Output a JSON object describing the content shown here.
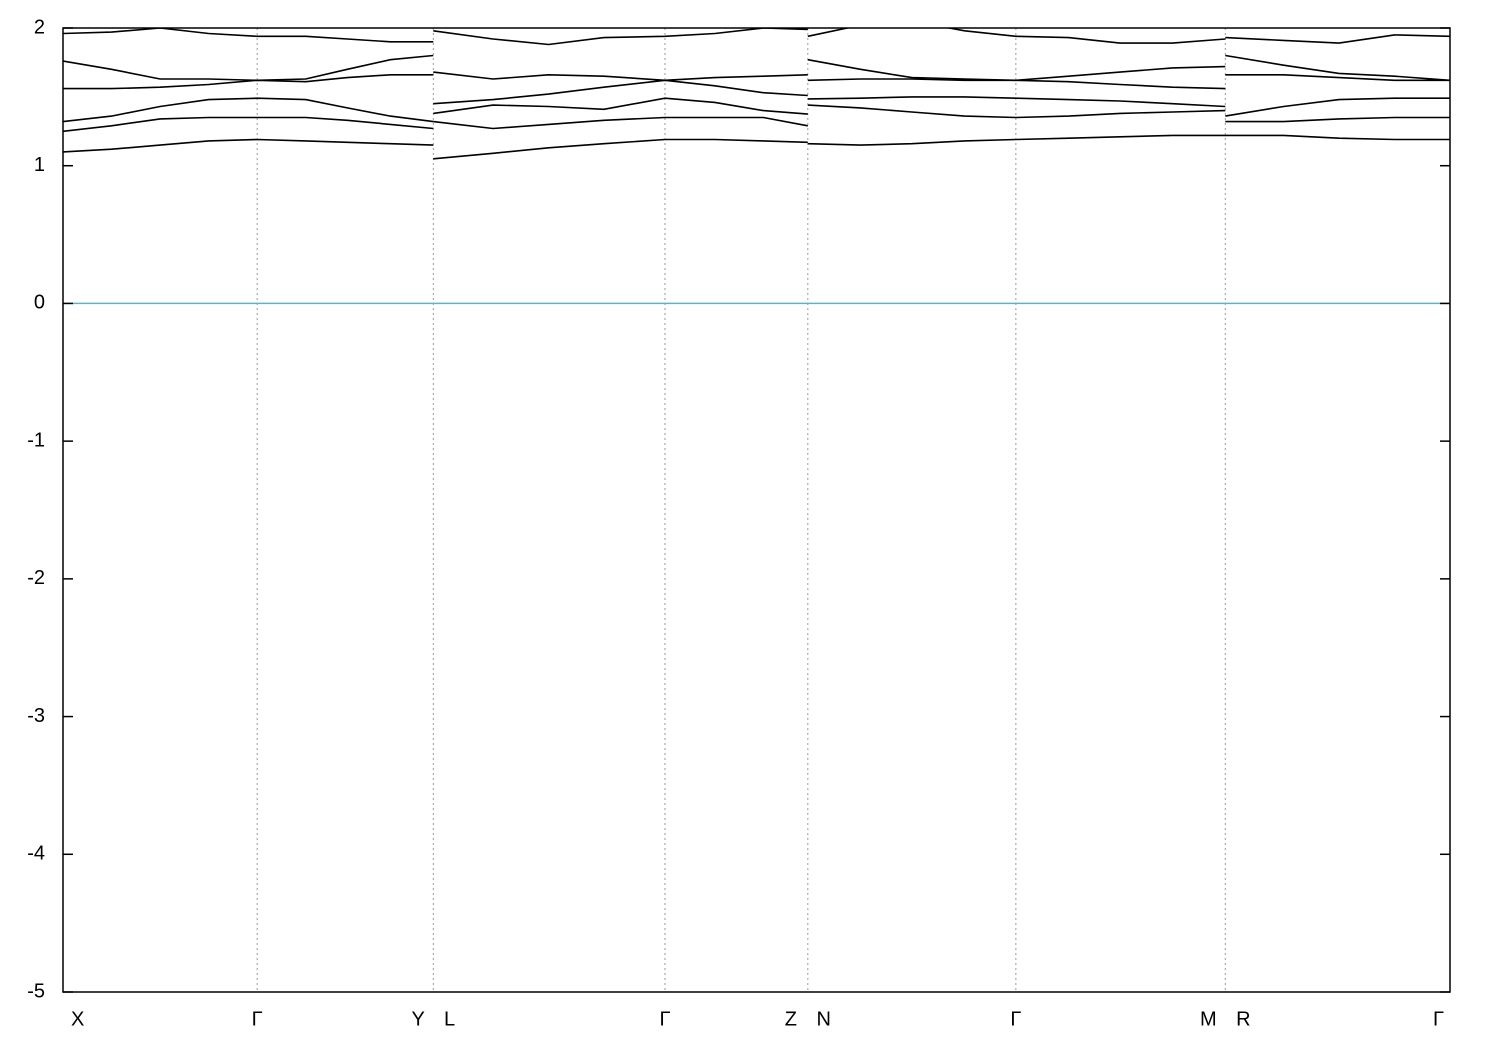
{
  "chart_data": {
    "type": "line",
    "x": [
      0,
      0.035,
      0.07,
      0.105,
      0.14,
      0.175,
      0.205,
      0.236,
      0.267,
      0.267,
      0.267,
      0.31,
      0.35,
      0.39,
      0.434,
      0.47,
      0.505,
      0.537,
      0.537,
      0.537,
      0.575,
      0.612,
      0.65,
      0.687,
      0.725,
      0.762,
      0.8,
      0.838,
      0.838,
      0.838,
      0.88,
      0.92,
      0.96,
      1.0
    ],
    "series": [
      {
        "color": "#000000",
        "values": [
          1.1,
          1.12,
          1.15,
          1.18,
          1.19,
          1.18,
          1.17,
          1.16,
          1.15,
          null,
          1.05,
          1.09,
          1.13,
          1.16,
          1.19,
          1.19,
          1.18,
          1.17,
          null,
          1.16,
          1.15,
          1.16,
          1.18,
          1.19,
          1.2,
          1.21,
          1.22,
          1.22,
          null,
          1.22,
          1.22,
          1.2,
          1.19,
          1.19
        ]
      },
      {
        "color": "#000000",
        "values": [
          1.25,
          1.29,
          1.34,
          1.35,
          1.35,
          1.35,
          1.33,
          1.3,
          1.27,
          null,
          1.32,
          1.27,
          1.3,
          1.33,
          1.35,
          1.35,
          1.35,
          1.29,
          null,
          1.44,
          1.42,
          1.39,
          1.36,
          1.35,
          1.36,
          1.38,
          1.39,
          1.4,
          null,
          1.32,
          1.32,
          1.34,
          1.35,
          1.35
        ]
      },
      {
        "color": "#000000",
        "values": [
          1.32,
          1.36,
          1.43,
          1.48,
          1.49,
          1.48,
          1.42,
          1.36,
          1.32,
          null,
          1.38,
          1.44,
          1.43,
          1.41,
          1.49,
          1.46,
          1.4,
          1.375,
          null,
          1.485,
          1.49,
          1.5,
          1.5,
          1.49,
          1.48,
          1.47,
          1.45,
          1.43,
          null,
          1.36,
          1.43,
          1.48,
          1.49,
          1.49
        ]
      },
      {
        "color": "#000000",
        "values": [
          1.56,
          1.56,
          1.57,
          1.59,
          1.62,
          1.61,
          1.64,
          1.66,
          1.66,
          null,
          1.45,
          1.48,
          1.52,
          1.57,
          1.62,
          1.58,
          1.53,
          1.51,
          null,
          1.62,
          1.63,
          1.63,
          1.62,
          1.62,
          1.61,
          1.59,
          1.57,
          1.56,
          null,
          1.66,
          1.66,
          1.64,
          1.62,
          1.62
        ]
      },
      {
        "color": "#000000",
        "values": [
          1.76,
          1.7,
          1.63,
          1.63,
          1.62,
          1.63,
          1.7,
          1.77,
          1.8,
          null,
          1.68,
          1.63,
          1.66,
          1.65,
          1.62,
          1.64,
          1.65,
          1.66,
          null,
          1.77,
          1.7,
          1.64,
          1.63,
          1.62,
          1.65,
          1.68,
          1.71,
          1.72,
          null,
          1.8,
          1.73,
          1.67,
          1.65,
          1.62
        ]
      },
      {
        "color": "#000000",
        "values": [
          1.96,
          1.97,
          2.0,
          1.96,
          1.94,
          1.94,
          1.92,
          1.9,
          1.9,
          null,
          1.98,
          1.92,
          1.88,
          1.93,
          1.94,
          1.96,
          2.0,
          1.99,
          null,
          1.94,
          2.02,
          2.05,
          1.98,
          1.94,
          1.93,
          1.89,
          1.89,
          1.92,
          null,
          1.93,
          1.91,
          1.89,
          1.95,
          1.94
        ]
      }
    ],
    "xlim": [
      0,
      1
    ],
    "xticks": [
      {
        "value": 0,
        "label": "X"
      },
      {
        "value": 0.14,
        "label": "Γ"
      },
      {
        "value": 0.267,
        "label": "Y L"
      },
      {
        "value": 0.434,
        "label": "Γ"
      },
      {
        "value": 0.537,
        "label": "Z N"
      },
      {
        "value": 0.687,
        "label": "Γ"
      },
      {
        "value": 0.838,
        "label": "M R"
      },
      {
        "value": 1,
        "label": "Γ"
      }
    ],
    "ylim": [
      -5,
      2
    ],
    "yticks": [
      2,
      1,
      0,
      -1,
      -2,
      -3,
      -4,
      -5
    ],
    "grid": true,
    "hline": 0,
    "hline_color": "#5ab4c8"
  }
}
